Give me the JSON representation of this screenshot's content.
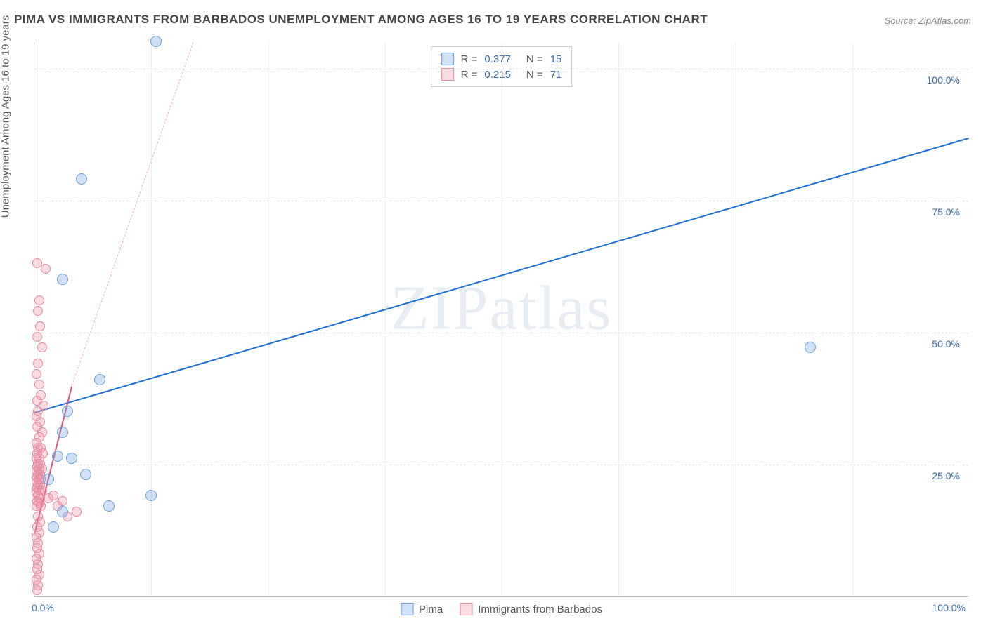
{
  "chart": {
    "type": "scatter",
    "title": "PIMA VS IMMIGRANTS FROM BARBADOS UNEMPLOYMENT AMONG AGES 16 TO 19 YEARS CORRELATION CHART",
    "source": "Source: ZipAtlas.com",
    "y_axis_label": "Unemployment Among Ages 16 to 19 years",
    "watermark": "ZIPatlas",
    "xlim": [
      0,
      100
    ],
    "ylim": [
      0,
      105
    ],
    "x_ticks": [
      {
        "v": 0,
        "label": "0.0%"
      },
      {
        "v": 100,
        "label": "100.0%"
      }
    ],
    "y_ticks": [
      {
        "v": 25,
        "label": "25.0%"
      },
      {
        "v": 50,
        "label": "50.0%"
      },
      {
        "v": 75,
        "label": "75.0%"
      },
      {
        "v": 100,
        "label": "100.0%"
      }
    ],
    "grid_color": "#dddddd",
    "background_color": "#ffffff",
    "series": [
      {
        "name": "Pima",
        "color_fill": "rgba(120,170,225,0.35)",
        "color_stroke": "#6a9edb",
        "marker_size": 16,
        "R": "0.377",
        "N": "15",
        "trend": {
          "x1": 0,
          "y1": 35,
          "x2": 100,
          "y2": 87,
          "color": "#1f6fd4",
          "width": 2.5,
          "dash": "solid"
        },
        "points": [
          {
            "x": 13,
            "y": 105
          },
          {
            "x": 5,
            "y": 79
          },
          {
            "x": 3,
            "y": 60
          },
          {
            "x": 83,
            "y": 47
          },
          {
            "x": 7,
            "y": 41
          },
          {
            "x": 3.5,
            "y": 35
          },
          {
            "x": 3,
            "y": 31
          },
          {
            "x": 4,
            "y": 26
          },
          {
            "x": 5.5,
            "y": 23
          },
          {
            "x": 2.5,
            "y": 26.5
          },
          {
            "x": 8,
            "y": 17
          },
          {
            "x": 12.5,
            "y": 19
          },
          {
            "x": 3,
            "y": 16
          },
          {
            "x": 2,
            "y": 13
          },
          {
            "x": 1.5,
            "y": 22
          }
        ]
      },
      {
        "name": "Immigrants from Barbados",
        "color_fill": "rgba(240,140,160,0.3)",
        "color_stroke": "#e68aa0",
        "marker_size": 14,
        "R": "0.215",
        "N": "71",
        "trend": {
          "x1": 0,
          "y1": 12,
          "x2": 4,
          "y2": 40,
          "color": "#e05080",
          "width": 2,
          "dash": "solid"
        },
        "trend_ext": {
          "x1": 4,
          "y1": 40,
          "x2": 17,
          "y2": 105,
          "color": "#f4a8bc",
          "width": 1,
          "dash": "dashed"
        },
        "points": [
          {
            "x": 0.3,
            "y": 63
          },
          {
            "x": 1.2,
            "y": 62
          },
          {
            "x": 0.5,
            "y": 56
          },
          {
            "x": 0.4,
            "y": 54
          },
          {
            "x": 0.6,
            "y": 51
          },
          {
            "x": 0.3,
            "y": 49
          },
          {
            "x": 0.8,
            "y": 47
          },
          {
            "x": 0.4,
            "y": 44
          },
          {
            "x": 0.2,
            "y": 42
          },
          {
            "x": 0.5,
            "y": 40
          },
          {
            "x": 0.7,
            "y": 38
          },
          {
            "x": 0.3,
            "y": 37
          },
          {
            "x": 1.0,
            "y": 36
          },
          {
            "x": 0.4,
            "y": 35
          },
          {
            "x": 0.2,
            "y": 34
          },
          {
            "x": 0.6,
            "y": 33
          },
          {
            "x": 0.3,
            "y": 32
          },
          {
            "x": 0.8,
            "y": 31
          },
          {
            "x": 0.5,
            "y": 30
          },
          {
            "x": 0.2,
            "y": 29
          },
          {
            "x": 0.4,
            "y": 28
          },
          {
            "x": 0.7,
            "y": 28
          },
          {
            "x": 0.3,
            "y": 27
          },
          {
            "x": 0.9,
            "y": 27
          },
          {
            "x": 0.5,
            "y": 26
          },
          {
            "x": 0.2,
            "y": 26
          },
          {
            "x": 0.6,
            "y": 25
          },
          {
            "x": 0.4,
            "y": 25
          },
          {
            "x": 0.3,
            "y": 24.5
          },
          {
            "x": 0.8,
            "y": 24
          },
          {
            "x": 0.5,
            "y": 24
          },
          {
            "x": 0.2,
            "y": 23.5
          },
          {
            "x": 0.6,
            "y": 23
          },
          {
            "x": 0.4,
            "y": 23
          },
          {
            "x": 0.3,
            "y": 22.5
          },
          {
            "x": 0.7,
            "y": 22
          },
          {
            "x": 0.5,
            "y": 22
          },
          {
            "x": 0.2,
            "y": 21.5
          },
          {
            "x": 0.4,
            "y": 21
          },
          {
            "x": 0.6,
            "y": 21
          },
          {
            "x": 0.3,
            "y": 20.5
          },
          {
            "x": 0.5,
            "y": 20
          },
          {
            "x": 0.8,
            "y": 20
          },
          {
            "x": 0.2,
            "y": 19.5
          },
          {
            "x": 0.4,
            "y": 19
          },
          {
            "x": 0.6,
            "y": 18.5
          },
          {
            "x": 0.3,
            "y": 18
          },
          {
            "x": 0.5,
            "y": 17.5
          },
          {
            "x": 0.2,
            "y": 17
          },
          {
            "x": 0.7,
            "y": 17
          },
          {
            "x": 1.5,
            "y": 18.5
          },
          {
            "x": 2,
            "y": 19
          },
          {
            "x": 2.5,
            "y": 17
          },
          {
            "x": 3,
            "y": 18
          },
          {
            "x": 3.5,
            "y": 15
          },
          {
            "x": 4.5,
            "y": 16
          },
          {
            "x": 0.4,
            "y": 15
          },
          {
            "x": 0.6,
            "y": 14
          },
          {
            "x": 0.3,
            "y": 13
          },
          {
            "x": 0.5,
            "y": 12
          },
          {
            "x": 0.2,
            "y": 11
          },
          {
            "x": 0.4,
            "y": 10
          },
          {
            "x": 0.3,
            "y": 9
          },
          {
            "x": 0.5,
            "y": 8
          },
          {
            "x": 0.2,
            "y": 7
          },
          {
            "x": 0.4,
            "y": 6
          },
          {
            "x": 0.3,
            "y": 5
          },
          {
            "x": 0.5,
            "y": 4
          },
          {
            "x": 0.2,
            "y": 3
          },
          {
            "x": 0.4,
            "y": 2
          },
          {
            "x": 0.3,
            "y": 1
          }
        ]
      }
    ],
    "legend_bottom": [
      {
        "swatch": "blue",
        "label": "Pima"
      },
      {
        "swatch": "pink",
        "label": "Immigrants from Barbados"
      }
    ]
  }
}
